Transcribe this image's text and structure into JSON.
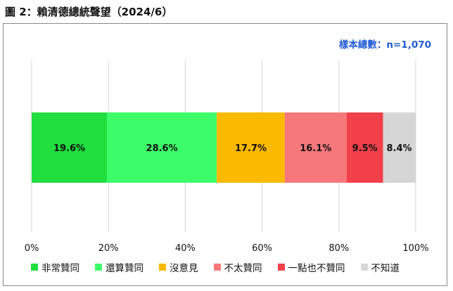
{
  "title": "圖 2：賴清德總統聲望（2024/6）",
  "sample_note": "樣本總數：n=1,070",
  "chart_data": {
    "type": "bar",
    "orientation": "horizontal",
    "stacked": true,
    "percent_scale": true,
    "xlim": [
      0,
      100
    ],
    "x_ticks": [
      "0%",
      "20%",
      "40%",
      "60%",
      "80%",
      "100%"
    ],
    "grid": true,
    "legend_position": "bottom",
    "series": [
      {
        "name": "非常贊同",
        "value": 19.6,
        "label": "19.6%",
        "color": "#1fde3e"
      },
      {
        "name": "還算贊同",
        "value": 28.6,
        "label": "28.6%",
        "color": "#3dfc6a"
      },
      {
        "name": "沒意見",
        "value": 17.7,
        "label": "17.7%",
        "color": "#fbb900"
      },
      {
        "name": "不太贊同",
        "value": 16.1,
        "label": "16.1%",
        "color": "#f6787a"
      },
      {
        "name": "一點也不贊同",
        "value": 9.5,
        "label": "9.5%",
        "color": "#f2404a"
      },
      {
        "name": "不知道",
        "value": 8.4,
        "label": "8.4%",
        "color": "#d6d6d6"
      }
    ]
  }
}
